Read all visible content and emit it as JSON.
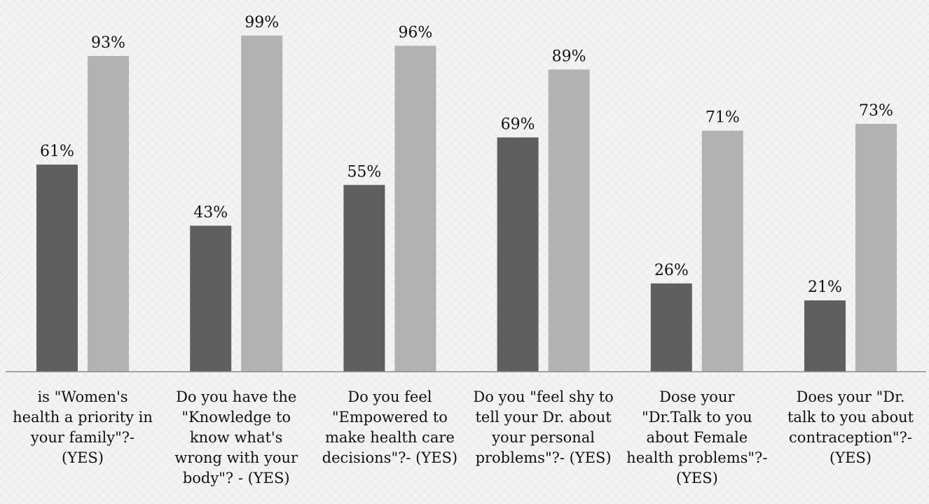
{
  "chart_data": {
    "type": "bar",
    "categories": [
      [
        "is \"Women's",
        "health a priority in",
        "your family\"?-",
        "(YES)"
      ],
      [
        "Do you have the",
        "\"Knowledge to",
        "know what's",
        "wrong with your",
        "body\"? - (YES)"
      ],
      [
        "Do you feel",
        "\"Empowered to",
        "make health care",
        "decisions\"?- (YES)"
      ],
      [
        "Do you \"feel shy to",
        "tell your Dr. about",
        "your personal",
        "problems\"?- (YES)"
      ],
      [
        "Dose your",
        "\"Dr.Talk to you",
        "about Female",
        "health problems\"?-",
        "(YES)"
      ],
      [
        "Does your \"Dr.",
        "talk to you about",
        "contraception\"?-",
        "(YES)"
      ]
    ],
    "series": [
      {
        "values": [
          61,
          43,
          55,
          69,
          26,
          21
        ],
        "labels": [
          "61%",
          "43%",
          "55%",
          "69%",
          "26%",
          "21%"
        ],
        "color": "#5f5f5f"
      },
      {
        "values": [
          93,
          99,
          96,
          89,
          71,
          73
        ],
        "labels": [
          "93%",
          "99%",
          "96%",
          "89%",
          "71%",
          "73%"
        ],
        "color": "#b2b2b2"
      }
    ],
    "ylim": [
      0,
      100
    ],
    "grid": false,
    "legend": false
  }
}
